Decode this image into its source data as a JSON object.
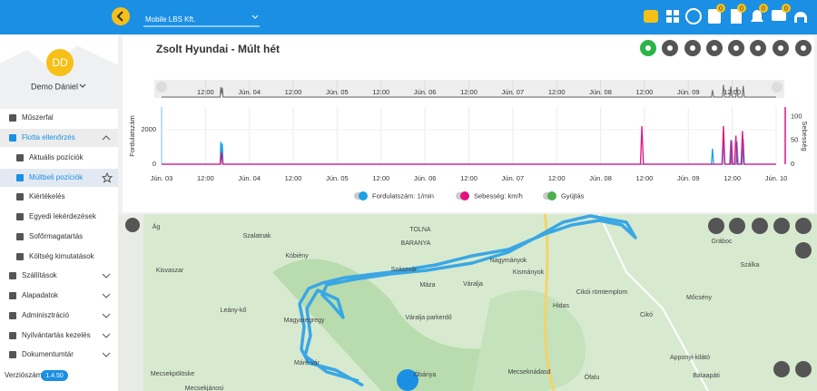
{
  "topbar": {
    "company": "Mobile LBS Kft.",
    "badges": [
      "0",
      "0",
      "0",
      "0"
    ]
  },
  "sidebar": {
    "avatar": "DD",
    "user": "Demo Dániel",
    "menu": [
      "Műszerfal",
      "Flotta ellenőrzés",
      "Aktuális pozíciók",
      "Múltbeli pozíciók",
      "Kiértékelés",
      "Egyedi lekérdezések",
      "Sofőrmagatartás",
      "Költség kimutatások",
      "Szállítások",
      "Alapadatok",
      "Adminisztráció",
      "Nyilvántartás kezelés",
      "Dokumentumtár"
    ],
    "version_label": "Verziószám:",
    "version": "1.4.50"
  },
  "vehicle_title": "Zsolt Hyundai - Múlt hét",
  "chart_data": {
    "type": "line",
    "y_label": "Fordulatszám",
    "y2_label": "Sebesség",
    "xlim": [
      0,
      168
    ],
    "xticks": [
      {
        "value": 0,
        "label": "Jún. 03"
      },
      {
        "value": 12,
        "label": "12:00"
      },
      {
        "value": 24,
        "label": "Jún. 04"
      },
      {
        "value": 36,
        "label": "12:00"
      },
      {
        "value": 48,
        "label": "Jún. 05"
      },
      {
        "value": 60,
        "label": "12:00"
      },
      {
        "value": 72,
        "label": "Jún. 06"
      },
      {
        "value": 84,
        "label": "12:00"
      },
      {
        "value": 96,
        "label": "Jún. 07"
      },
      {
        "value": 108,
        "label": "12:00"
      },
      {
        "value": 120,
        "label": "Jún. 08"
      },
      {
        "value": 132,
        "label": "12:00"
      },
      {
        "value": 144,
        "label": "Jún. 09"
      },
      {
        "value": 156,
        "label": "12:00"
      },
      {
        "value": 168,
        "label": "Jún. 10"
      }
    ],
    "ylim": [
      0,
      3300
    ],
    "yticks": [
      0,
      2000
    ],
    "y2lim": [
      0,
      120
    ],
    "y2ticks": [
      0,
      50,
      100
    ],
    "series": [
      {
        "name": "Fordulatszám: 1/min",
        "color": "#1ea0e8",
        "x": [
          0,
          16.0,
          16.2,
          16.4,
          16.6,
          16.8,
          150.3,
          150.6,
          150.9,
          153.3,
          153.6,
          153.9,
          155.3,
          155.6,
          155.9,
          157.0,
          157.3,
          157.6,
          158.7,
          159.0,
          159.3,
          168
        ],
        "values": [
          0,
          0,
          1300,
          400,
          1200,
          0,
          0,
          900,
          0,
          0,
          1600,
          0,
          0,
          1400,
          0,
          0,
          1300,
          0,
          0,
          1450,
          0,
          0
        ]
      },
      {
        "name": "Sebesség: km/h",
        "color": "#e0137f",
        "axis": "y2",
        "x": [
          0,
          16.1,
          16.4,
          16.7,
          130.9,
          131.3,
          131.7,
          153.2,
          153.6,
          154.0,
          155.5,
          155.8,
          156.1,
          156.6,
          157.0,
          157.4,
          158.4,
          158.8,
          159.2,
          168
        ],
        "values": [
          0,
          0,
          25,
          0,
          0,
          80,
          0,
          0,
          80,
          0,
          0,
          50,
          0,
          0,
          60,
          0,
          0,
          70,
          0,
          0
        ]
      },
      {
        "name": "Gyújtás",
        "color": "#4caf50",
        "x": [],
        "values": []
      }
    ]
  },
  "map": {
    "labels": [
      "Ág",
      "Szalatnak",
      "Kóbiény",
      "TOLNA",
      "BARANYA",
      "Kisvaszar",
      "Szászvár",
      "Máza",
      "Váralja",
      "Nagymányok",
      "Kismányok",
      "Magyaregregy",
      "Váralja parkerdő",
      "Hidas",
      "Cikó",
      "Cikói römtemplom",
      "Mőcsény",
      "Szálka",
      "Gráboc",
      "Mecsekpölöske",
      "Mecseknádasd",
      "Óbánya",
      "Öfalu",
      "Bátaapáti",
      "Apponyi-kilátó",
      "Leány-kő",
      "Máré-vár",
      "Mecsekjánosi"
    ]
  }
}
